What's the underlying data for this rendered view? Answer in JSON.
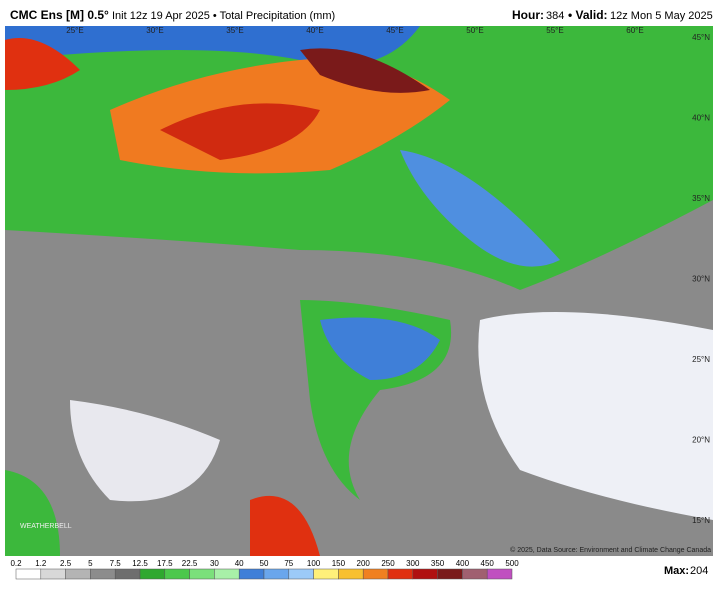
{
  "header": {
    "model": "CMC Ens [M] 0.5°",
    "subtitle": "Init 12z 19 Apr 2025 • Total Precipitation (mm)",
    "hour_label": "Hour:",
    "hour": "384",
    "valid_label": "• Valid:",
    "valid": "12z Mon 5 May 2025"
  },
  "map": {
    "lon_labels": [
      "25°E",
      "30°E",
      "35°E",
      "40°E",
      "45°E",
      "50°E",
      "55°E",
      "60°E"
    ],
    "lat_labels": [
      "45°N",
      "40°N",
      "35°N",
      "30°N",
      "25°N",
      "20°N",
      "15°N"
    ],
    "credit": "© 2025, Data Source: Environment and Climate Change Canada",
    "watermark": "WEATHERBELL"
  },
  "legend": {
    "labels": [
      "0.2",
      "1.2",
      "2.5",
      "5",
      "7.5",
      "12.5",
      "17.5",
      "22.5",
      "30",
      "40",
      "50",
      "75",
      "100",
      "150",
      "200",
      "250",
      "300",
      "350",
      "400",
      "450",
      "500"
    ],
    "colors": [
      "#ffffff",
      "#d8d8d8",
      "#b4b4b4",
      "#8c8c8c",
      "#6e6e6e",
      "#2fa82f",
      "#4cc84c",
      "#7be07b",
      "#a8f0a8",
      "#3f7fd8",
      "#6aa6ec",
      "#9ccaf8",
      "#fff07a",
      "#f8c030",
      "#f08020",
      "#e03010",
      "#b01010",
      "#7a1a1a",
      "#a06070",
      "#c050c0"
    ],
    "max_label": "Max:",
    "max": "204"
  }
}
